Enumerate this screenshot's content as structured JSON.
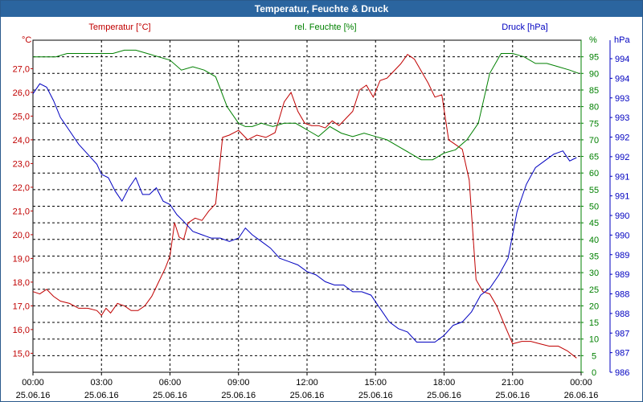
{
  "window": {
    "title": "Temperatur, Feuchte & Druck"
  },
  "chart_data": {
    "type": "line",
    "title": "Temperatur, Feuchte & Druck",
    "grid": true,
    "x_ticks": [
      {
        "time": "00:00",
        "date": "25.06.16"
      },
      {
        "time": "03:00",
        "date": "25.06.16"
      },
      {
        "time": "06:00",
        "date": "25.06.16"
      },
      {
        "time": "09:00",
        "date": "25.06.16"
      },
      {
        "time": "12:00",
        "date": "25.06.16"
      },
      {
        "time": "15:00",
        "date": "25.06.16"
      },
      {
        "time": "18:00",
        "date": "25.06.16"
      },
      {
        "time": "21:00",
        "date": "25.06.16"
      },
      {
        "time": "00:00",
        "date": "26.06.16"
      }
    ],
    "xlim_hours": [
      0,
      24
    ],
    "axes": {
      "temperature": {
        "label": "Temperatur [°C]",
        "unit": "°C",
        "ylim": [
          14.2,
          28.2
        ],
        "ticks": [
          "15,0",
          "16,0",
          "17,0",
          "18,0",
          "19,0",
          "20,0",
          "21,0",
          "22,0",
          "23,0",
          "24,0",
          "25,0",
          "26,0",
          "27,0"
        ],
        "color": "#c00000"
      },
      "humidity": {
        "label": "rel. Feuchte [%]",
        "unit": "%",
        "ylim": [
          0,
          100
        ],
        "ticks": [
          "0",
          "5",
          "10",
          "15",
          "20",
          "25",
          "30",
          "35",
          "40",
          "45",
          "50",
          "55",
          "60",
          "65",
          "70",
          "75",
          "80",
          "85",
          "90",
          "95"
        ],
        "color": "#008000"
      },
      "pressure": {
        "label": "Druck [hPa]",
        "unit": "hPa",
        "ylim": [
          986,
          995.9
        ],
        "ticks": [
          "986",
          "987",
          "987",
          "988",
          "988",
          "989",
          "989",
          "990",
          "990",
          "991",
          "991",
          "992",
          "992",
          "993",
          "993",
          "994",
          "994"
        ],
        "color": "#0000c0"
      }
    },
    "series": [
      {
        "name": "Temperatur [°C]",
        "axis": "temperature",
        "color": "#c00000",
        "x": [
          0,
          0.3,
          0.6,
          0.9,
          1.2,
          1.6,
          2,
          2.4,
          2.8,
          3,
          3.2,
          3.4,
          3.7,
          4,
          4.3,
          4.6,
          4.9,
          5.2,
          5.5,
          5.8,
          6,
          6.2,
          6.4,
          6.6,
          6.8,
          7.1,
          7.4,
          7.7,
          8,
          8.3,
          8.6,
          9,
          9.4,
          9.8,
          10.2,
          10.6,
          11,
          11.3,
          11.6,
          11.9,
          12.2,
          12.5,
          12.8,
          13.1,
          13.4,
          13.7,
          14,
          14.3,
          14.6,
          14.9,
          15.2,
          15.5,
          15.8,
          16.1,
          16.4,
          16.7,
          17,
          17.3,
          17.6,
          17.9,
          18.2,
          18.5,
          18.8,
          19.1,
          19.4,
          19.7,
          20,
          20.3,
          20.6,
          21,
          21.4,
          21.8,
          22.2,
          22.6,
          23,
          23.4,
          23.8
        ],
        "values": [
          17.6,
          17.5,
          17.7,
          17.4,
          17.2,
          17.1,
          16.9,
          16.9,
          16.8,
          16.6,
          16.9,
          16.7,
          17.1,
          17.0,
          16.8,
          16.8,
          17.0,
          17.4,
          18.0,
          18.6,
          19.1,
          20.5,
          19.9,
          19.8,
          20.5,
          20.7,
          20.6,
          21.0,
          21.3,
          24.1,
          24.2,
          24.4,
          24.0,
          24.2,
          24.1,
          24.3,
          25.6,
          26.0,
          25.2,
          24.7,
          24.6,
          24.6,
          24.5,
          24.8,
          24.6,
          24.9,
          25.2,
          26.1,
          26.3,
          25.8,
          26.5,
          26.6,
          26.9,
          27.2,
          27.6,
          27.4,
          26.9,
          26.4,
          25.8,
          25.9,
          24.0,
          23.8,
          23.6,
          22.3,
          18.1,
          17.6,
          17.5,
          17.0,
          16.3,
          15.4,
          15.5,
          15.5,
          15.4,
          15.3,
          15.3,
          15.1,
          14.8
        ]
      },
      {
        "name": "rel. Feuchte [%]",
        "axis": "humidity",
        "color": "#008000",
        "x": [
          0,
          0.5,
          1,
          1.5,
          2,
          2.5,
          3,
          3.5,
          4,
          4.5,
          5,
          5.5,
          6,
          6.5,
          7,
          7.5,
          8,
          8.5,
          9,
          9.3,
          9.6,
          10,
          10.5,
          11,
          11.5,
          12,
          12.5,
          13,
          13.5,
          14,
          14.5,
          15,
          15.5,
          16,
          16.5,
          17,
          17.5,
          18,
          18.5,
          19,
          19.5,
          20,
          20.5,
          21,
          21.5,
          22,
          22.5,
          23,
          23.5,
          23.9
        ],
        "values": [
          95,
          95,
          95,
          96,
          96,
          96,
          96,
          96,
          97,
          97,
          96,
          95,
          94,
          91,
          92,
          91,
          89,
          80,
          75,
          74,
          74,
          75,
          74,
          75,
          75,
          73,
          71,
          74,
          72,
          71,
          72,
          71,
          70,
          68,
          66,
          64,
          64,
          66,
          67,
          70,
          75,
          90,
          96,
          96,
          95,
          93,
          93,
          92,
          91,
          90
        ]
      },
      {
        "name": "Druck [hPa]",
        "axis": "pressure",
        "color": "#0000c0",
        "x": [
          0,
          0.3,
          0.6,
          0.9,
          1.2,
          1.6,
          2,
          2.4,
          2.8,
          3,
          3.3,
          3.6,
          3.9,
          4.2,
          4.5,
          4.8,
          5.1,
          5.4,
          5.7,
          6,
          6.3,
          6.6,
          7,
          7.4,
          7.8,
          8.2,
          8.6,
          9,
          9.3,
          9.6,
          10,
          10.4,
          10.8,
          11.2,
          11.6,
          12,
          12.4,
          12.8,
          13.2,
          13.6,
          14,
          14.4,
          14.8,
          15.2,
          15.6,
          16,
          16.4,
          16.8,
          17.2,
          17.6,
          18,
          18.4,
          18.8,
          19.2,
          19.6,
          20,
          20.4,
          20.8,
          21.2,
          21.6,
          22,
          22.4,
          22.8,
          23.2,
          23.5,
          23.8
        ],
        "values": [
          994.3,
          994.6,
          994.5,
          994.1,
          993.6,
          993.2,
          992.8,
          992.5,
          992.2,
          991.9,
          991.8,
          991.4,
          991.1,
          991.5,
          991.8,
          991.3,
          991.3,
          991.5,
          991.1,
          991.0,
          990.7,
          990.5,
          990.2,
          990.1,
          990.0,
          990.0,
          989.9,
          990.0,
          990.3,
          990.1,
          989.9,
          989.7,
          989.4,
          989.3,
          989.2,
          989.0,
          988.9,
          988.7,
          988.6,
          988.6,
          988.4,
          988.4,
          988.3,
          987.9,
          987.5,
          987.3,
          987.2,
          986.9,
          986.9,
          986.9,
          987.1,
          987.4,
          987.5,
          987.8,
          988.3,
          988.5,
          988.9,
          989.4,
          990.8,
          991.6,
          992.1,
          992.3,
          992.5,
          992.6,
          992.3,
          992.4
        ]
      }
    ]
  }
}
